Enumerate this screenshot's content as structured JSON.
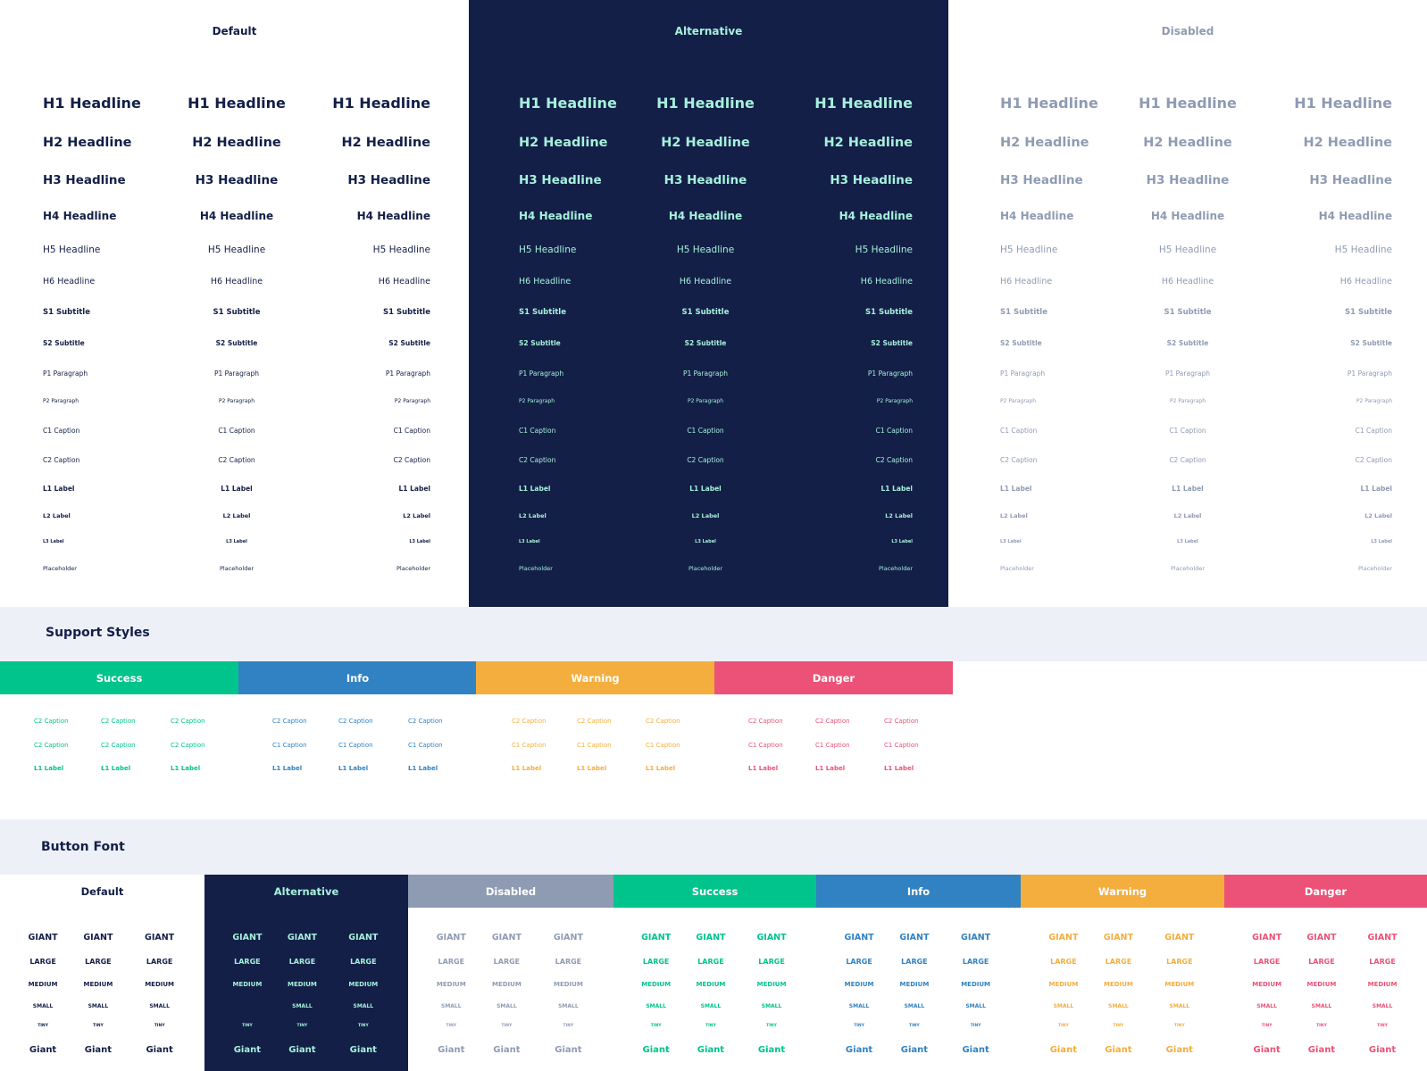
{
  "typography": {
    "panels": [
      {
        "key": "default",
        "title": "Default",
        "bg": "#ffffff",
        "title_color": "#131f47",
        "text_color": "#131f47"
      },
      {
        "key": "alternative",
        "title": "Alternative",
        "bg": "#131f47",
        "title_color": "#a7f0dc",
        "text_color": "#a7f0dc"
      },
      {
        "key": "disabled",
        "title": "Disabled",
        "bg": "#ffffff",
        "title_color": "#8f9bb3",
        "text_color": "#8f9bb3"
      }
    ],
    "styles": [
      {
        "key": "h1",
        "label": "H1 Headline"
      },
      {
        "key": "h2",
        "label": "H2 Headline"
      },
      {
        "key": "h3",
        "label": "H3 Headline"
      },
      {
        "key": "h4",
        "label": "H4 Headline"
      },
      {
        "key": "h5",
        "label": "H5 Headline"
      },
      {
        "key": "h6",
        "label": "H6 Headline"
      },
      {
        "key": "s1",
        "label": "S1 Subtitle"
      },
      {
        "key": "s2",
        "label": "S2 Subtitle"
      },
      {
        "key": "p1",
        "label": "P1 Paragraph"
      },
      {
        "key": "p2",
        "label": "P2 Paragraph"
      },
      {
        "key": "c1",
        "label": "C1 Caption"
      },
      {
        "key": "c2",
        "label": "C2 Caption"
      },
      {
        "key": "l1",
        "label": "L1 Label"
      },
      {
        "key": "l2",
        "label": "L2 Label"
      },
      {
        "key": "l3",
        "label": "L3 Label"
      },
      {
        "key": "ph",
        "label": "Placeholder"
      }
    ]
  },
  "support_styles": {
    "title": "Support Styles",
    "groups": [
      {
        "name": "Success",
        "color": "#00c48c"
      },
      {
        "name": "Info",
        "color": "#3182c2"
      },
      {
        "name": "Warning",
        "color": "#f4ae3d"
      },
      {
        "name": "Danger",
        "color": "#ec5277"
      }
    ],
    "rows": [
      "C2 Caption",
      "C2 Caption",
      "L1 Label"
    ],
    "info_rows": [
      "C2 Caption",
      "C1 Caption",
      "L1 Label"
    ]
  },
  "button_font": {
    "title": "Button Font",
    "groups": [
      {
        "name": "Default",
        "head_bg": "#ffffff",
        "head_color": "#131f47",
        "body_bg": "#ffffff",
        "text_color": "#131f47"
      },
      {
        "name": "Alternative",
        "head_bg": "#131f47",
        "head_color": "#a7f0dc",
        "body_bg": "#131f47",
        "text_color": "#a7f0dc"
      },
      {
        "name": "Disabled",
        "head_bg": "#8f9bb3",
        "head_color": "#ffffff",
        "body_bg": "#ffffff",
        "text_color": "#8f9bb3"
      },
      {
        "name": "Success",
        "head_bg": "#00c48c",
        "head_color": "#ffffff",
        "body_bg": "#ffffff",
        "text_color": "#00c48c"
      },
      {
        "name": "Info",
        "head_bg": "#3182c2",
        "head_color": "#ffffff",
        "body_bg": "#ffffff",
        "text_color": "#3182c2"
      },
      {
        "name": "Warning",
        "head_bg": "#f4ae3d",
        "head_color": "#ffffff",
        "body_bg": "#ffffff",
        "text_color": "#f4ae3d"
      },
      {
        "name": "Danger",
        "head_bg": "#ec5277",
        "head_color": "#ffffff",
        "body_bg": "#ffffff",
        "text_color": "#ec5277"
      }
    ],
    "sizes": [
      {
        "key": "giant",
        "label": "GIANT"
      },
      {
        "key": "large",
        "label": "LARGE"
      },
      {
        "key": "medium",
        "label": "MEDIUM"
      },
      {
        "key": "small",
        "label": "SMALL"
      },
      {
        "key": "tiny",
        "label": "TINY"
      },
      {
        "key": "giant2",
        "label": "Giant"
      }
    ]
  }
}
